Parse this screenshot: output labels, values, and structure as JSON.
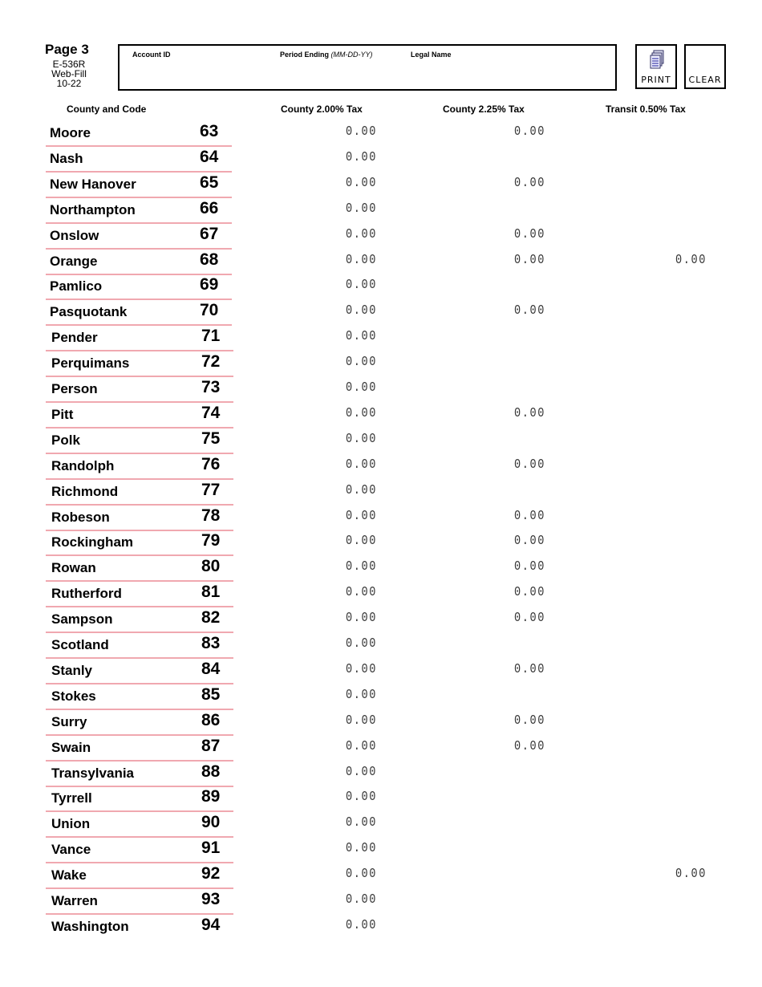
{
  "header": {
    "page": "Page 3",
    "form_id": "E-536R",
    "form_type": "Web-Fill",
    "form_date": "10-22",
    "account_id_label": "Account ID",
    "period_label": "Period Ending",
    "period_format": "(MM-DD-YY)",
    "legal_name_label": "Legal Name",
    "print_label": "PRINT",
    "clear_label": "CLEAR"
  },
  "columns": {
    "county": "County and Code",
    "c200": "County 2.00% Tax",
    "c225": "County 2.25% Tax",
    "t050": "Transit 0.50% Tax"
  },
  "rows": [
    {
      "name": "Moore",
      "code": "63",
      "c200": "0.00",
      "c225": "0.00",
      "t050": ""
    },
    {
      "name": "Nash",
      "code": "64",
      "c200": "0.00",
      "c225": "",
      "t050": ""
    },
    {
      "name": "New Hanover",
      "code": "65",
      "c200": "0.00",
      "c225": "0.00",
      "t050": ""
    },
    {
      "name": "Northampton",
      "code": "66",
      "c200": "0.00",
      "c225": "",
      "t050": ""
    },
    {
      "name": "Onslow",
      "code": "67",
      "c200": "0.00",
      "c225": "0.00",
      "t050": ""
    },
    {
      "name": "Orange",
      "code": "68",
      "c200": "0.00",
      "c225": "0.00",
      "t050": "0.00"
    },
    {
      "name": "Pamlico",
      "code": "69",
      "c200": "0.00",
      "c225": "",
      "t050": ""
    },
    {
      "name": "Pasquotank",
      "code": "70",
      "c200": "0.00",
      "c225": "0.00",
      "t050": ""
    },
    {
      "name": "Pender",
      "code": "71",
      "c200": "0.00",
      "c225": "",
      "t050": ""
    },
    {
      "name": "Perquimans",
      "code": "72",
      "c200": "0.00",
      "c225": "",
      "t050": ""
    },
    {
      "name": "Person",
      "code": "73",
      "c200": "0.00",
      "c225": "",
      "t050": ""
    },
    {
      "name": "Pitt",
      "code": "74",
      "c200": "0.00",
      "c225": "0.00",
      "t050": ""
    },
    {
      "name": "Polk",
      "code": "75",
      "c200": "0.00",
      "c225": "",
      "t050": ""
    },
    {
      "name": "Randolph",
      "code": "76",
      "c200": "0.00",
      "c225": "0.00",
      "t050": ""
    },
    {
      "name": "Richmond",
      "code": "77",
      "c200": "0.00",
      "c225": "",
      "t050": ""
    },
    {
      "name": "Robeson",
      "code": "78",
      "c200": "0.00",
      "c225": "0.00",
      "t050": ""
    },
    {
      "name": "Rockingham",
      "code": "79",
      "c200": "0.00",
      "c225": "0.00",
      "t050": ""
    },
    {
      "name": "Rowan",
      "code": "80",
      "c200": "0.00",
      "c225": "0.00",
      "t050": ""
    },
    {
      "name": "Rutherford",
      "code": "81",
      "c200": "0.00",
      "c225": "0.00",
      "t050": ""
    },
    {
      "name": "Sampson",
      "code": "82",
      "c200": "0.00",
      "c225": "0.00",
      "t050": ""
    },
    {
      "name": "Scotland",
      "code": "83",
      "c200": "0.00",
      "c225": "",
      "t050": ""
    },
    {
      "name": "Stanly",
      "code": "84",
      "c200": "0.00",
      "c225": "0.00",
      "t050": ""
    },
    {
      "name": "Stokes",
      "code": "85",
      "c200": "0.00",
      "c225": "",
      "t050": ""
    },
    {
      "name": "Surry",
      "code": "86",
      "c200": "0.00",
      "c225": "0.00",
      "t050": ""
    },
    {
      "name": "Swain",
      "code": "87",
      "c200": "0.00",
      "c225": "0.00",
      "t050": ""
    },
    {
      "name": "Transylvania",
      "code": "88",
      "c200": "0.00",
      "c225": "",
      "t050": ""
    },
    {
      "name": "Tyrrell",
      "code": "89",
      "c200": "0.00",
      "c225": "",
      "t050": ""
    },
    {
      "name": "Union",
      "code": "90",
      "c200": "0.00",
      "c225": "",
      "t050": ""
    },
    {
      "name": "Vance",
      "code": "91",
      "c200": "0.00",
      "c225": "",
      "t050": ""
    },
    {
      "name": "Wake",
      "code": "92",
      "c200": "0.00",
      "c225": "",
      "t050": "0.00"
    },
    {
      "name": "Warren",
      "code": "93",
      "c200": "0.00",
      "c225": "",
      "t050": ""
    },
    {
      "name": "Washington",
      "code": "94",
      "c200": "0.00",
      "c225": "",
      "t050": ""
    }
  ]
}
